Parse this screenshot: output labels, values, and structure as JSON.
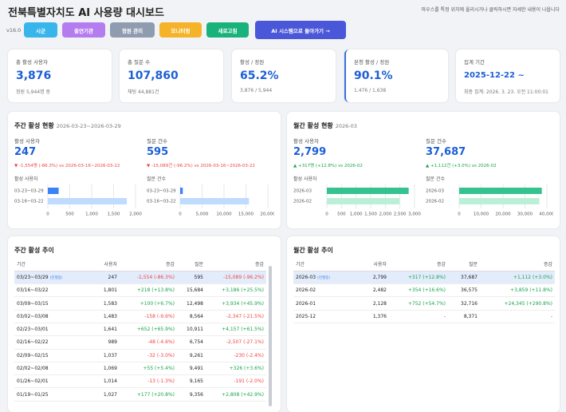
{
  "header": {
    "title": "전북특별자치도 AI 사용량 대시보드",
    "hint": "마우스를 특정 위치에 올리시거나 클릭하시면 자세한 내용이 나옵니다",
    "version": "v16.0",
    "buttons": [
      "시군",
      "출연기관",
      "정원 관리",
      "모니터링",
      "새로고침",
      "AI 시스템으로 돌아가기 →"
    ]
  },
  "kpis": [
    {
      "label": "총 활성 사용자",
      "value": "3,876",
      "sub": "정원 5,944명 중"
    },
    {
      "label": "총 질문 수",
      "value": "107,860",
      "sub": "채팅 44,881건"
    },
    {
      "label": "활성 / 정원",
      "value": "65.2%",
      "sub": "3,876 / 5,944"
    },
    {
      "label": "본청 활성 / 정원",
      "value": "90.1%",
      "sub": "1,476 / 1,638"
    },
    {
      "label": "집계 기간",
      "value": "2025-12-22 ~",
      "sub": "최종 집계: 2026. 3. 23. 오전 11:00:01"
    }
  ],
  "weekly": {
    "title": "주간 활성 현황",
    "period": "2026-03-23~2026-03-29",
    "stats": [
      {
        "label": "활성 사용자",
        "value": "247",
        "delta": "▼ -1,554명 (-86.3%) vs 2026-03-16~2026-03-22",
        "delta_color": "#ef4444"
      },
      {
        "label": "질문 건수",
        "value": "595",
        "delta": "▼ -15,089건 (-96.2%) vs 2026-03-16~2026-03-22",
        "delta_color": "#ef4444"
      }
    ],
    "charts": [
      {
        "label": "활성 사용자",
        "categories": [
          "03-23~03-29",
          "03-16~03-22"
        ],
        "values": [
          247,
          1801
        ],
        "colors": [
          "#3b82f6",
          "#bfdbfe"
        ],
        "xlim": [
          0,
          2000
        ],
        "xticks": [
          0,
          500,
          {
            "value": 1000,
            "label": "1,000"
          },
          {
            "value": 1500,
            "label": "1,500"
          },
          {
            "value": 2000,
            "label": "2,000"
          }
        ]
      },
      {
        "label": "질문 건수",
        "categories": [
          "03-23~03-29",
          "03-16~03-22"
        ],
        "values": [
          595,
          15684
        ],
        "colors": [
          "#3b82f6",
          "#bfdbfe"
        ],
        "xlim": [
          0,
          20000
        ],
        "xticks": [
          0,
          {
            "value": 5000,
            "label": "5,000"
          },
          {
            "value": 10000,
            "label": "10,000"
          },
          {
            "value": 15000,
            "label": "15,000"
          },
          {
            "value": 20000,
            "label": "20,000"
          }
        ]
      }
    ]
  },
  "monthly": {
    "title": "월간 활성 현황",
    "period": "2026-03",
    "stats": [
      {
        "label": "활성 사용자",
        "value": "2,799",
        "delta": "▲ +317명 (+12.8%) vs 2026-02",
        "delta_color": "#16a34a"
      },
      {
        "label": "질문 건수",
        "value": "37,687",
        "delta": "▲ +1,112건 (+3.0%) vs 2026-02",
        "delta_color": "#16a34a"
      }
    ],
    "charts": [
      {
        "label": "활성 사용자",
        "categories": [
          "2026-03",
          "2026-02"
        ],
        "values": [
          2799,
          2482
        ],
        "colors": [
          "#34c38f",
          "#bbf0d8"
        ],
        "xlim": [
          0,
          3000
        ],
        "xticks": [
          0,
          500,
          {
            "value": 1000,
            "label": "1,000"
          },
          {
            "value": 1500,
            "label": "1,500"
          },
          {
            "value": 2000,
            "label": "2,000"
          },
          {
            "value": 2500,
            "label": "2,500"
          },
          {
            "value": 3000,
            "label": "3,000"
          }
        ]
      },
      {
        "label": "질문 건수",
        "categories": [
          "2026-03",
          "2026-02"
        ],
        "values": [
          37687,
          36575
        ],
        "colors": [
          "#34c38f",
          "#bbf0d8"
        ],
        "xlim": [
          0,
          40000
        ],
        "xticks": [
          0,
          {
            "value": 10000,
            "label": "10,000"
          },
          {
            "value": 20000,
            "label": "20,000"
          },
          {
            "value": 30000,
            "label": "30,000"
          },
          {
            "value": 40000,
            "label": "40,000"
          }
        ]
      }
    ]
  },
  "weekly_table": {
    "title": "주간 활성 추이",
    "columns": [
      "기간",
      "사용자",
      "증감",
      "질문",
      "증감"
    ],
    "rows": [
      {
        "cells": [
          "03/23~03/29",
          "247",
          "-1,554 (-86.3%)",
          "595",
          "-15,089 (-96.2%)"
        ],
        "tag": "(진행중)"
      },
      {
        "cells": [
          "03/16~03/22",
          "1,801",
          "+218 (+13.8%)",
          "15,684",
          "+3,186 (+25.5%)"
        ]
      },
      {
        "cells": [
          "03/09~03/15",
          "1,583",
          "+100 (+6.7%)",
          "12,498",
          "+3,934 (+45.9%)"
        ]
      },
      {
        "cells": [
          "03/02~03/08",
          "1,483",
          "-158 (-9.6%)",
          "8,564",
          "-2,347 (-21.5%)"
        ]
      },
      {
        "cells": [
          "02/23~03/01",
          "1,641",
          "+652 (+65.9%)",
          "10,911",
          "+4,157 (+61.5%)"
        ]
      },
      {
        "cells": [
          "02/16~02/22",
          "989",
          "-48 (-4.6%)",
          "6,754",
          "-2,507 (-27.1%)"
        ]
      },
      {
        "cells": [
          "02/09~02/15",
          "1,037",
          "-32 (-3.0%)",
          "9,261",
          "-230 (-2.4%)"
        ]
      },
      {
        "cells": [
          "02/02~02/08",
          "1,069",
          "+55 (+5.4%)",
          "9,491",
          "+326 (+3.6%)"
        ]
      },
      {
        "cells": [
          "01/26~02/01",
          "1,014",
          "-13 (-1.3%)",
          "9,165",
          "-191 (-2.0%)"
        ]
      },
      {
        "cells": [
          "01/19~01/25",
          "1,027",
          "+177 (+20.8%)",
          "9,356",
          "+2,808 (+42.9%)"
        ]
      }
    ]
  },
  "monthly_table": {
    "title": "월간 활성 추이",
    "columns": [
      "기간",
      "사용자",
      "증감",
      "질문",
      "증감"
    ],
    "rows": [
      {
        "cells": [
          "2026-03",
          "2,799",
          "+317 (+12.8%)",
          "37,687",
          "+1,112 (+3.0%)"
        ],
        "tag": "(진행중)"
      },
      {
        "cells": [
          "2026-02",
          "2,482",
          "+354 (+16.6%)",
          "36,575",
          "+3,859 (+11.8%)"
        ]
      },
      {
        "cells": [
          "2026-01",
          "2,128",
          "+752 (+54.7%)",
          "32,716",
          "+24,345 (+290.8%)"
        ]
      },
      {
        "cells": [
          "2025-12",
          "1,376",
          "-",
          "8,371",
          "-"
        ]
      }
    ]
  }
}
